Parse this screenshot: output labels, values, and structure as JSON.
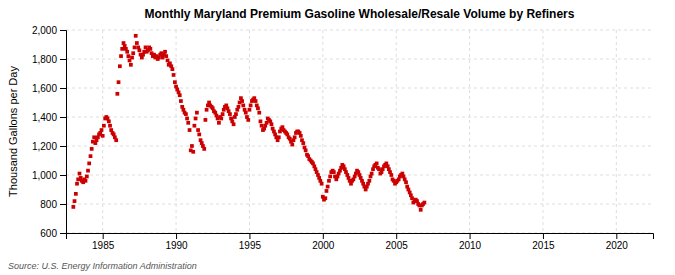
{
  "chart_data": {
    "type": "scatter",
    "title": "Monthly Maryland Premium Gasoline Wholesale/Resale Volume by Refiners",
    "ylabel": "Thousand Gallons per Day",
    "annotations": [
      "Source: U.S. Energy Information Administration"
    ],
    "color": "#CC0000",
    "marker": "square",
    "grid": true,
    "xlim": [
      1982.5,
      2022.5
    ],
    "xticks": [
      1985,
      1990,
      1995,
      2000,
      2005,
      2010,
      2015,
      2020
    ],
    "ylim": [
      600,
      2000
    ],
    "yticks": [
      600,
      800,
      {
        "value": 1000,
        "label": "1,000"
      },
      {
        "value": 1200,
        "label": "1,200"
      },
      {
        "value": 1400,
        "label": "1,400"
      },
      {
        "value": 1600,
        "label": "1,600"
      },
      {
        "value": 1800,
        "label": "1,800"
      },
      {
        "value": 2000,
        "label": "2,000"
      }
    ],
    "x": [
      1983.0,
      1983.08,
      1983.17,
      1983.25,
      1983.33,
      1983.42,
      1983.5,
      1983.58,
      1983.67,
      1983.75,
      1983.83,
      1983.92,
      1984.0,
      1984.08,
      1984.17,
      1984.25,
      1984.33,
      1984.42,
      1984.5,
      1984.58,
      1984.67,
      1984.75,
      1984.83,
      1984.92,
      1985.0,
      1985.08,
      1985.17,
      1985.25,
      1985.33,
      1985.42,
      1985.5,
      1985.58,
      1985.67,
      1985.75,
      1985.83,
      1985.92,
      1986.0,
      1986.08,
      1986.17,
      1986.25,
      1986.33,
      1986.42,
      1986.5,
      1986.58,
      1986.67,
      1986.75,
      1986.83,
      1986.92,
      1987.0,
      1987.08,
      1987.17,
      1987.25,
      1987.33,
      1987.42,
      1987.5,
      1987.58,
      1987.67,
      1987.75,
      1987.83,
      1987.92,
      1988.0,
      1988.08,
      1988.17,
      1988.25,
      1988.33,
      1988.42,
      1988.5,
      1988.58,
      1988.67,
      1988.75,
      1988.83,
      1988.92,
      1989.0,
      1989.08,
      1989.17,
      1989.25,
      1989.33,
      1989.42,
      1989.5,
      1989.58,
      1989.67,
      1989.75,
      1989.83,
      1989.92,
      1990.0,
      1990.08,
      1990.17,
      1990.25,
      1990.33,
      1990.42,
      1990.5,
      1990.58,
      1990.67,
      1990.75,
      1990.83,
      1990.92,
      1991.0,
      1991.08,
      1991.17,
      1991.25,
      1991.33,
      1991.42,
      1991.5,
      1991.58,
      1991.67,
      1991.75,
      1991.83,
      1991.92,
      1992.0,
      1992.08,
      1992.17,
      1992.25,
      1992.33,
      1992.42,
      1992.5,
      1992.58,
      1992.67,
      1992.75,
      1992.83,
      1992.92,
      1993.0,
      1993.08,
      1993.17,
      1993.25,
      1993.33,
      1993.42,
      1993.5,
      1993.58,
      1993.67,
      1993.75,
      1993.83,
      1993.92,
      1994.0,
      1994.08,
      1994.17,
      1994.25,
      1994.33,
      1994.42,
      1994.5,
      1994.58,
      1994.67,
      1994.75,
      1994.83,
      1994.92,
      1995.0,
      1995.08,
      1995.17,
      1995.25,
      1995.33,
      1995.42,
      1995.5,
      1995.58,
      1995.67,
      1995.75,
      1995.83,
      1995.92,
      1996.0,
      1996.08,
      1996.17,
      1996.25,
      1996.33,
      1996.42,
      1996.5,
      1996.58,
      1996.67,
      1996.75,
      1996.83,
      1996.92,
      1997.0,
      1997.08,
      1997.17,
      1997.25,
      1997.33,
      1997.42,
      1997.5,
      1997.58,
      1997.67,
      1997.75,
      1997.83,
      1997.92,
      1998.0,
      1998.08,
      1998.17,
      1998.25,
      1998.33,
      1998.42,
      1998.5,
      1998.58,
      1998.67,
      1998.75,
      1998.83,
      1998.92,
      1999.0,
      1999.08,
      1999.17,
      1999.25,
      1999.33,
      1999.42,
      1999.5,
      1999.58,
      1999.67,
      1999.75,
      1999.83,
      1999.92,
      2000.0,
      2000.08,
      2000.17,
      2000.25,
      2000.33,
      2000.42,
      2000.5,
      2000.58,
      2000.67,
      2000.75,
      2000.83,
      2000.92,
      2001.0,
      2001.08,
      2001.17,
      2001.25,
      2001.33,
      2001.42,
      2001.5,
      2001.58,
      2001.67,
      2001.75,
      2001.83,
      2001.92,
      2002.0,
      2002.08,
      2002.17,
      2002.25,
      2002.33,
      2002.42,
      2002.5,
      2002.58,
      2002.67,
      2002.75,
      2002.83,
      2002.92,
      2003.0,
      2003.08,
      2003.17,
      2003.25,
      2003.33,
      2003.42,
      2003.5,
      2003.58,
      2003.67,
      2003.75,
      2003.83,
      2003.92,
      2004.0,
      2004.08,
      2004.17,
      2004.25,
      2004.33,
      2004.42,
      2004.5,
      2004.58,
      2004.67,
      2004.75,
      2004.83,
      2004.92,
      2005.0,
      2005.08,
      2005.17,
      2005.25,
      2005.33,
      2005.42,
      2005.5,
      2005.58,
      2005.67,
      2005.75,
      2005.83,
      2005.92,
      2006.0,
      2006.08,
      2006.17,
      2006.25,
      2006.33,
      2006.42,
      2006.5,
      2006.58,
      2006.67,
      2006.75,
      2006.83,
      2006.92
    ],
    "values": [
      780,
      820,
      870,
      940,
      970,
      1010,
      980,
      960,
      950,
      970,
      960,
      990,
      1030,
      1080,
      1130,
      1180,
      1230,
      1260,
      1220,
      1240,
      1260,
      1280,
      1290,
      1310,
      1270,
      1340,
      1390,
      1400,
      1390,
      1370,
      1340,
      1310,
      1290,
      1280,
      1260,
      1240,
      1560,
      1640,
      1750,
      1820,
      1870,
      1910,
      1890,
      1870,
      1850,
      1820,
      1790,
      1760,
      1810,
      1840,
      1880,
      1960,
      1910,
      1880,
      1860,
      1830,
      1810,
      1830,
      1850,
      1880,
      1850,
      1860,
      1880,
      1870,
      1840,
      1820,
      1830,
      1810,
      1820,
      1800,
      1810,
      1830,
      1840,
      1810,
      1830,
      1850,
      1820,
      1790,
      1760,
      1770,
      1750,
      1730,
      1690,
      1640,
      1610,
      1590,
      1570,
      1550,
      1510,
      1470,
      1450,
      1430,
      1420,
      1390,
      1360,
      1310,
      1170,
      1200,
      1160,
      1340,
      1390,
      1430,
      1310,
      1280,
      1240,
      1220,
      1200,
      1180,
      1380,
      1450,
      1480,
      1500,
      1480,
      1470,
      1460,
      1440,
      1430,
      1410,
      1390,
      1360,
      1400,
      1390,
      1420,
      1450,
      1470,
      1480,
      1460,
      1440,
      1420,
      1390,
      1370,
      1350,
      1400,
      1420,
      1450,
      1470,
      1500,
      1530,
      1510,
      1480,
      1450,
      1430,
      1400,
      1380,
      1450,
      1480,
      1510,
      1520,
      1530,
      1510,
      1480,
      1460,
      1430,
      1370,
      1340,
      1310,
      1320,
      1340,
      1360,
      1390,
      1380,
      1370,
      1350,
      1320,
      1300,
      1280,
      1260,
      1240,
      1260,
      1300,
      1320,
      1330,
      1310,
      1300,
      1290,
      1280,
      1260,
      1250,
      1230,
      1210,
      1240,
      1260,
      1290,
      1300,
      1300,
      1290,
      1270,
      1240,
      1220,
      1190,
      1170,
      1140,
      1130,
      1110,
      1100,
      1090,
      1080,
      1060,
      1040,
      1020,
      1000,
      980,
      960,
      940,
      850,
      830,
      840,
      890,
      920,
      960,
      990,
      1020,
      1030,
      1020,
      990,
      970,
      990,
      1010,
      1030,
      1050,
      1070,
      1060,
      1040,
      1020,
      1000,
      980,
      960,
      940,
      960,
      970,
      990,
      1010,
      1030,
      1020,
      1000,
      980,
      960,
      940,
      920,
      900,
      920,
      940,
      960,
      990,
      1010,
      1040,
      1060,
      1070,
      1080,
      1050,
      1040,
      1010,
      1020,
      1040,
      1060,
      1070,
      1080,
      1060,
      1040,
      1020,
      1000,
      970,
      960,
      940,
      950,
      960,
      970,
      990,
      1000,
      1010,
      990,
      970,
      950,
      920,
      900,
      880,
      860,
      840,
      810,
      820,
      830,
      820,
      800,
      790,
      760,
      790,
      800,
      810
    ]
  }
}
